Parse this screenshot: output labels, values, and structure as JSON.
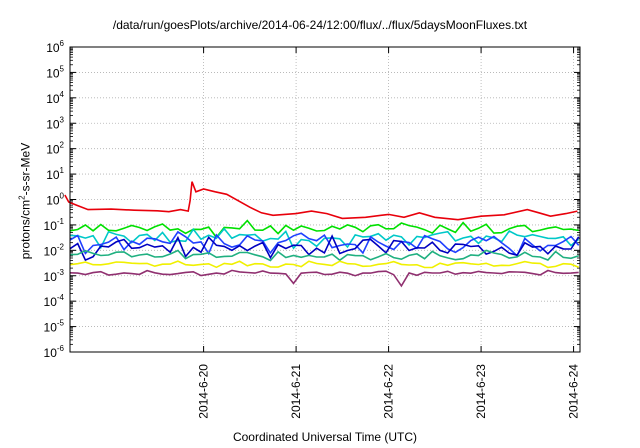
{
  "chart_data": {
    "type": "line",
    "title": "/data/run/goesPlots/archive/2014-06-24/12:00/flux/../flux/5daysMoonFluxes.txt",
    "xlabel": "Coordinated Universal Time (UTC)",
    "ylabel": {
      "before": "protons/cm",
      "sup": "2",
      "after": "-s-sr-MeV"
    },
    "y_scale": "log",
    "ylim": [
      1e-06,
      1000000.0
    ],
    "xlim": [
      "2014-06-19 01:20",
      "2014-06-24 13:40"
    ],
    "grid": true,
    "x_ticks": [
      "2014-6-20",
      "2014-6-21",
      "2014-6-22",
      "2014-6-23",
      "2014-6-24"
    ],
    "y_ticks": [
      {
        "value": 1e-06,
        "exp": "-6"
      },
      {
        "value": 1e-05,
        "exp": "-5"
      },
      {
        "value": 0.0001,
        "exp": "-4"
      },
      {
        "value": 0.001,
        "exp": "-3"
      },
      {
        "value": 0.01,
        "exp": "-2"
      },
      {
        "value": 0.1,
        "exp": "-1"
      },
      {
        "value": 1,
        "exp": "0"
      },
      {
        "value": 10,
        "exp": "1"
      },
      {
        "value": 100,
        "exp": "2"
      },
      {
        "value": 1000,
        "exp": "3"
      },
      {
        "value": 10000,
        "exp": "4"
      },
      {
        "value": 100000,
        "exp": "5"
      },
      {
        "value": 1000000,
        "exp": "6"
      }
    ],
    "y_tick_base": "10",
    "series": [
      {
        "color": "#e8000b",
        "points": [
          [
            "2014-06-19 00:00",
            1.5
          ],
          [
            "2014-06-19 01:00",
            0.8
          ],
          [
            "2014-06-19 03:00",
            0.6
          ],
          [
            "2014-06-19 06:00",
            0.4
          ],
          [
            "2014-06-19 12:00",
            0.42
          ],
          [
            "2014-06-19 18:00",
            0.38
          ],
          [
            "2014-06-20 00:00",
            0.36
          ],
          [
            "2014-06-20 03:00",
            0.33
          ],
          [
            "2014-06-20 06:00",
            0.4
          ],
          [
            "2014-06-20 08:00",
            0.35
          ],
          [
            "2014-06-20 08:30",
            0.9
          ],
          [
            "2014-06-20 09:00",
            5.0
          ],
          [
            "2014-06-20 10:00",
            2.0
          ],
          [
            "2014-06-20 12:00",
            2.6
          ],
          [
            "2014-06-20 15:00",
            2.0
          ],
          [
            "2014-06-20 18:00",
            1.6
          ],
          [
            "2014-06-21 00:00",
            0.5
          ],
          [
            "2014-06-21 03:00",
            0.3
          ],
          [
            "2014-06-21 06:00",
            0.24
          ],
          [
            "2014-06-21 12:00",
            0.28
          ],
          [
            "2014-06-21 16:00",
            0.35
          ],
          [
            "2014-06-21 20:00",
            0.28
          ],
          [
            "2014-06-22 00:00",
            0.18
          ],
          [
            "2014-06-22 06:00",
            0.2
          ],
          [
            "2014-06-22 12:00",
            0.26
          ],
          [
            "2014-06-22 16:00",
            0.2
          ],
          [
            "2014-06-22 20:00",
            0.3
          ],
          [
            "2014-06-23 00:00",
            0.2
          ],
          [
            "2014-06-23 06:00",
            0.16
          ],
          [
            "2014-06-23 12:00",
            0.22
          ],
          [
            "2014-06-23 18:00",
            0.25
          ],
          [
            "2014-06-24 00:00",
            0.4
          ],
          [
            "2014-06-24 03:00",
            0.3
          ],
          [
            "2014-06-24 06:00",
            0.22
          ],
          [
            "2014-06-24 10:00",
            0.28
          ],
          [
            "2014-06-24 13:00",
            0.35
          ]
        ]
      },
      {
        "color": "#00e000",
        "base": 0.07,
        "amp": 0.35,
        "seed": 3
      },
      {
        "color": "#00c8c8",
        "base": 0.03,
        "amp": 0.45,
        "seed": 7
      },
      {
        "color": "#2040ff",
        "base": 0.02,
        "amp": 0.55,
        "seed": 11
      },
      {
        "color": "#0000c0",
        "base": 0.012,
        "amp": 0.5,
        "seed": 17
      },
      {
        "color": "#20b080",
        "base": 0.006,
        "amp": 0.25,
        "seed": 23
      },
      {
        "color": "#f0f000",
        "base": 0.0028,
        "amp": 0.15,
        "seed": 29
      },
      {
        "color": "#903070",
        "base": 0.0013,
        "amp": 0.12,
        "seed": 31,
        "dips": [
          [
            "2014-06-21 11:00",
            0.0005
          ],
          [
            "2014-06-22 16:00",
            0.0004
          ]
        ]
      }
    ]
  }
}
